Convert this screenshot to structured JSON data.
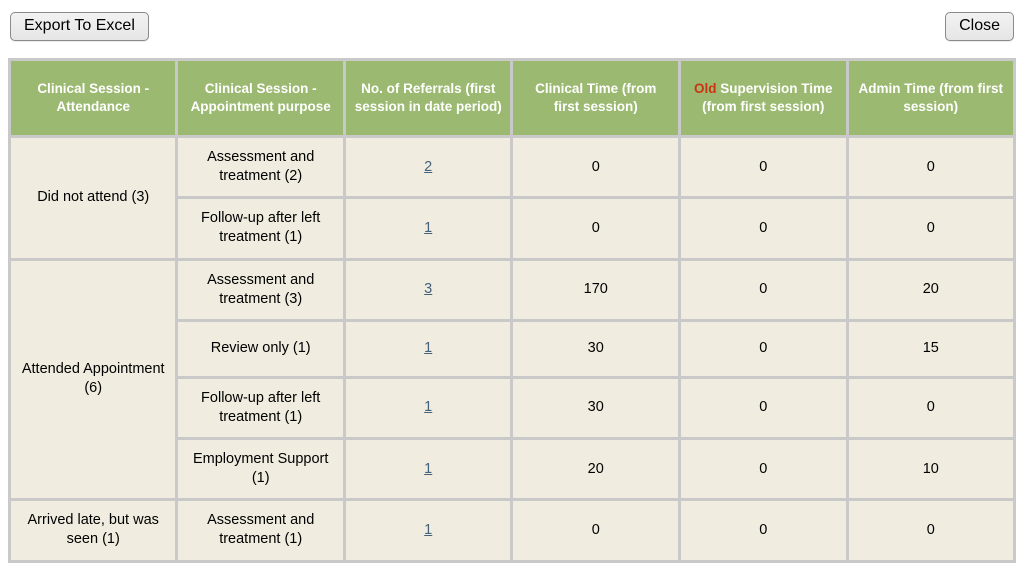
{
  "toolbar": {
    "export_label": "Export To Excel",
    "close_label": "Close"
  },
  "colors": {
    "header_bg": "#9bb970",
    "header_text": "#ffffff",
    "highlight_red": "#cc3311",
    "cell_bg": "#f0ede0",
    "border": "#c9c9c9",
    "link": "#44617a",
    "page_bg": "#ffffff",
    "button_bg": "#ececec",
    "button_border": "#8a8a8a"
  },
  "table": {
    "headers": [
      {
        "highlight": "",
        "label": "Clinical Session - Attendance"
      },
      {
        "highlight": "",
        "label": "Clinical Session - Appointment purpose"
      },
      {
        "highlight": "",
        "label": "No. of Referrals (first session in date period)"
      },
      {
        "highlight": "",
        "label": "Clinical Time (from first session)"
      },
      {
        "highlight": "Old",
        "label": " Supervision Time (from first session)"
      },
      {
        "highlight": "",
        "label": "Admin Time (from first session)"
      }
    ],
    "groups": [
      {
        "attendance": "Did not attend (3)",
        "rows": [
          {
            "purpose": "Assessment and treatment (2)",
            "referrals": "2",
            "clinical_time": "0",
            "supervision_time": "0",
            "admin_time": "0"
          },
          {
            "purpose": "Follow-up after left treatment (1)",
            "referrals": "1",
            "clinical_time": "0",
            "supervision_time": "0",
            "admin_time": "0"
          }
        ]
      },
      {
        "attendance": "Attended Appointment (6)",
        "rows": [
          {
            "purpose": "Assessment and treatment (3)",
            "referrals": "3",
            "clinical_time": "170",
            "supervision_time": "0",
            "admin_time": "20"
          },
          {
            "purpose": "Review only (1)",
            "referrals": "1",
            "clinical_time": "30",
            "supervision_time": "0",
            "admin_time": "15"
          },
          {
            "purpose": "Follow-up after left treatment (1)",
            "referrals": "1",
            "clinical_time": "30",
            "supervision_time": "0",
            "admin_time": "0"
          },
          {
            "purpose": "Employment Support (1)",
            "referrals": "1",
            "clinical_time": "20",
            "supervision_time": "0",
            "admin_time": "10"
          }
        ]
      },
      {
        "attendance": "Arrived late, but was seen (1)",
        "rows": [
          {
            "purpose": "Assessment and treatment (1)",
            "referrals": "1",
            "clinical_time": "0",
            "supervision_time": "0",
            "admin_time": "0"
          }
        ]
      }
    ]
  }
}
